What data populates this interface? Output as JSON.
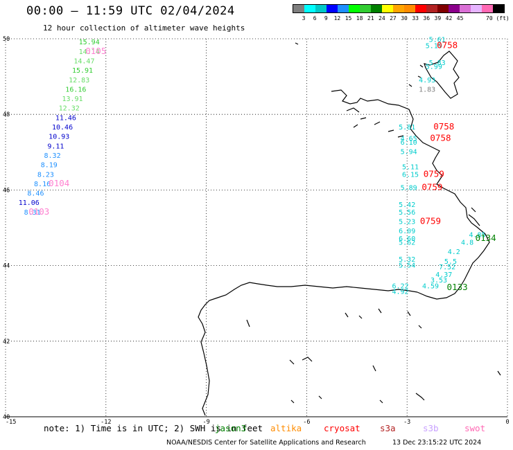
{
  "title": "00:00 – 11:59 UTC 02/04/2024",
  "subtitle": "12 hour collection of altimeter wave heights",
  "colorbar": {
    "colors": [
      "#7f7f7f",
      "#00ffff",
      "#00c8c8",
      "#0000ff",
      "#1e90ff",
      "#00ff00",
      "#32cd32",
      "#008000",
      "#ffff00",
      "#ffa500",
      "#ff8c00",
      "#ff0000",
      "#b22222",
      "#800000",
      "#8b008b",
      "#da70d6",
      "#e6b4ff",
      "#ff69b4",
      "#000000"
    ],
    "labels": [
      "3",
      "6",
      "9",
      "12",
      "15",
      "18",
      "21",
      "24",
      "27",
      "30",
      "33",
      "36",
      "39",
      "42",
      "45",
      "70 (ft)"
    ]
  },
  "axes": {
    "lon_ticks": [
      "-15",
      "-12",
      "-9",
      "-6",
      "-3",
      "0"
    ],
    "lat_ticks": [
      "50",
      "48",
      "46",
      "44",
      "42",
      "40"
    ]
  },
  "note": "note: 1) Time is in UTC; 2) SWH is in feet",
  "satellites": [
    {
      "name": "jason3",
      "color": "#008000"
    },
    {
      "name": "altika",
      "color": "#ff8c00"
    },
    {
      "name": "cryosat",
      "color": "#ff0000"
    },
    {
      "name": "s3a",
      "color": "#b22222"
    },
    {
      "name": "s3b",
      "color": "#c8a0ff"
    },
    {
      "name": "swot",
      "color": "#ff69b4"
    }
  ],
  "credit": "NOAA/NESDIS Center for Satellite Applications and Research",
  "timestamp": "13 Dec 23:15:22 UTC 2024",
  "map_data": {
    "extent": {
      "lon": [
        -15,
        0
      ],
      "lat": [
        40,
        50
      ]
    },
    "readings": [
      {
        "lon": -12.5,
        "lat": 49.85,
        "text": "15.94",
        "color": "#32cd32"
      },
      {
        "lon": -12.5,
        "lat": 49.6,
        "text": "14.14",
        "color": "#66dd66"
      },
      {
        "lon": -12.65,
        "lat": 49.35,
        "text": "14.47",
        "color": "#66dd66"
      },
      {
        "lon": -12.7,
        "lat": 49.1,
        "text": "15.91",
        "color": "#32cd32"
      },
      {
        "lon": -12.8,
        "lat": 48.85,
        "text": "12.83",
        "color": "#66dd66"
      },
      {
        "lon": -12.9,
        "lat": 48.6,
        "text": "16.16",
        "color": "#32cd32"
      },
      {
        "lon": -13.0,
        "lat": 48.35,
        "text": "13.91",
        "color": "#66dd66"
      },
      {
        "lon": -13.1,
        "lat": 48.1,
        "text": "12.32",
        "color": "#66dd66"
      },
      {
        "lon": -13.2,
        "lat": 47.85,
        "text": "11.46",
        "color": "#0000cc"
      },
      {
        "lon": -13.3,
        "lat": 47.6,
        "text": "10.46",
        "color": "#0000cc"
      },
      {
        "lon": -13.4,
        "lat": 47.35,
        "text": "10.93",
        "color": "#0000cc"
      },
      {
        "lon": -13.5,
        "lat": 47.1,
        "text": "9.11",
        "color": "#0000cc"
      },
      {
        "lon": -13.6,
        "lat": 46.85,
        "text": "8.32",
        "color": "#1e90ff"
      },
      {
        "lon": -13.7,
        "lat": 46.6,
        "text": "8.19",
        "color": "#1e90ff"
      },
      {
        "lon": -13.8,
        "lat": 46.35,
        "text": "8.23",
        "color": "#1e90ff"
      },
      {
        "lon": -13.9,
        "lat": 46.1,
        "text": "8.16",
        "color": "#1e90ff"
      },
      {
        "lon": -14.1,
        "lat": 45.85,
        "text": "8.46",
        "color": "#1e90ff"
      },
      {
        "lon": -14.3,
        "lat": 45.6,
        "text": "11.06",
        "color": "#0000cc"
      },
      {
        "lon": -14.2,
        "lat": 45.35,
        "text": "8.31",
        "color": "#1e90ff"
      },
      {
        "lon": -2.1,
        "lat": 49.92,
        "text": "5.61",
        "color": "#00cccc"
      },
      {
        "lon": -2.2,
        "lat": 49.75,
        "text": "5.19",
        "color": "#00cccc"
      },
      {
        "lon": -2.1,
        "lat": 49.3,
        "text": "5.83",
        "color": "#00cccc"
      },
      {
        "lon": -2.2,
        "lat": 49.2,
        "text": "5.99",
        "color": "#00cccc"
      },
      {
        "lon": -2.4,
        "lat": 48.85,
        "text": "4.93",
        "color": "#00cccc"
      },
      {
        "lon": -2.4,
        "lat": 48.6,
        "text": "1.83",
        "color": "#7f7f7f"
      },
      {
        "lon": -3.0,
        "lat": 47.6,
        "text": "5.81",
        "color": "#00cccc"
      },
      {
        "lon": -2.95,
        "lat": 47.3,
        "text": "4.65",
        "color": "#00cccc"
      },
      {
        "lon": -2.95,
        "lat": 47.2,
        "text": "6.10",
        "color": "#00cccc"
      },
      {
        "lon": -2.95,
        "lat": 46.95,
        "text": "5.94",
        "color": "#00cccc"
      },
      {
        "lon": -2.9,
        "lat": 46.55,
        "text": "5.11",
        "color": "#00cccc"
      },
      {
        "lon": -2.9,
        "lat": 46.35,
        "text": "6.15",
        "color": "#00cccc"
      },
      {
        "lon": -2.95,
        "lat": 46.0,
        "text": "5.89",
        "color": "#00cccc"
      },
      {
        "lon": -3.0,
        "lat": 45.55,
        "text": "5.42",
        "color": "#00cccc"
      },
      {
        "lon": -3.0,
        "lat": 45.35,
        "text": "5.56",
        "color": "#00cccc"
      },
      {
        "lon": -3.0,
        "lat": 45.1,
        "text": "5.23",
        "color": "#00cccc"
      },
      {
        "lon": -3.0,
        "lat": 44.85,
        "text": "6.09",
        "color": "#00cccc"
      },
      {
        "lon": -3.0,
        "lat": 44.65,
        "text": "6.60",
        "color": "#00cccc"
      },
      {
        "lon": -3.0,
        "lat": 44.55,
        "text": "5.62",
        "color": "#00cccc"
      },
      {
        "lon": -3.0,
        "lat": 44.1,
        "text": "5.32",
        "color": "#00cccc"
      },
      {
        "lon": -3.0,
        "lat": 43.95,
        "text": "5.54",
        "color": "#00cccc"
      },
      {
        "lon": -3.2,
        "lat": 43.4,
        "text": "6.22",
        "color": "#00cccc"
      },
      {
        "lon": -3.2,
        "lat": 43.25,
        "text": "4.92",
        "color": "#00cccc"
      },
      {
        "lon": -0.9,
        "lat": 44.75,
        "text": "4.85",
        "color": "#00cccc"
      },
      {
        "lon": -1.2,
        "lat": 44.55,
        "text": "4.8",
        "color": "#00cccc"
      },
      {
        "lon": -1.6,
        "lat": 44.3,
        "text": "4.2",
        "color": "#00cccc"
      },
      {
        "lon": -1.7,
        "lat": 44.05,
        "text": "5.5",
        "color": "#00cccc"
      },
      {
        "lon": -1.8,
        "lat": 43.9,
        "text": "7.52",
        "color": "#00cccc"
      },
      {
        "lon": -1.9,
        "lat": 43.7,
        "text": "4.37",
        "color": "#00cccc"
      },
      {
        "lon": -2.05,
        "lat": 43.55,
        "text": "3.53",
        "color": "#00cccc"
      },
      {
        "lon": -2.3,
        "lat": 43.4,
        "text": "4.59",
        "color": "#00cccc"
      }
    ],
    "pass_labels": [
      {
        "lon": -12.3,
        "lat": 49.6,
        "text": "0105",
        "color": "#ff80d0"
      },
      {
        "lon": -13.4,
        "lat": 46.1,
        "text": "0104",
        "color": "#ff80d0"
      },
      {
        "lon": -14.0,
        "lat": 45.35,
        "text": "0103",
        "color": "#ff80d0"
      },
      {
        "lon": -1.8,
        "lat": 49.75,
        "text": "0758",
        "color": "#ff0000"
      },
      {
        "lon": -1.9,
        "lat": 47.6,
        "text": "0758",
        "color": "#ff0000"
      },
      {
        "lon": -2.0,
        "lat": 47.3,
        "text": "0758",
        "color": "#ff0000"
      },
      {
        "lon": -2.2,
        "lat": 46.35,
        "text": "0759",
        "color": "#ff0000"
      },
      {
        "lon": -2.25,
        "lat": 46.0,
        "text": "0759",
        "color": "#ff0000"
      },
      {
        "lon": -2.3,
        "lat": 45.1,
        "text": "0759",
        "color": "#ff0000"
      },
      {
        "lon": -0.65,
        "lat": 44.65,
        "text": "0134",
        "color": "#008000"
      },
      {
        "lon": -1.5,
        "lat": 43.35,
        "text": "0133",
        "color": "#008000"
      }
    ]
  }
}
